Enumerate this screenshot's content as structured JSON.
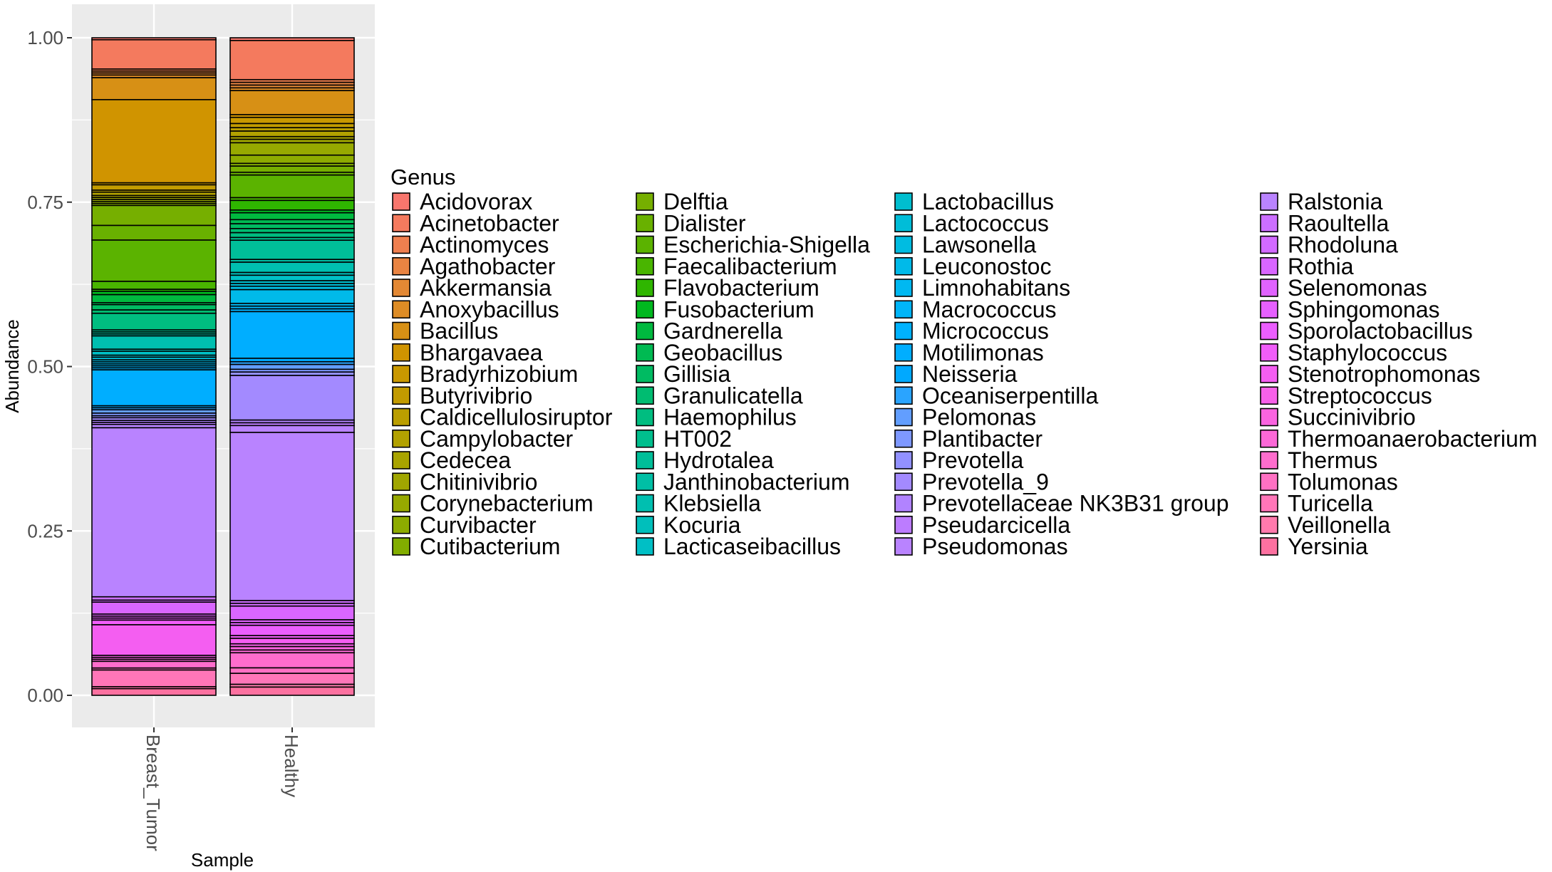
{
  "chart_data": {
    "type": "bar",
    "stacked": true,
    "title": "",
    "xlabel": "Sample",
    "ylabel": "Abundance",
    "ylim": [
      0,
      1.05
    ],
    "yticks": [
      "0.00",
      "0.25",
      "0.50",
      "0.75",
      "1.00"
    ],
    "grid": true,
    "legend_position": "right",
    "legend_title": "Genus",
    "categories": [
      "Breast_Tumor",
      "Healthy"
    ],
    "series": [
      {
        "name": "Acidovorax",
        "color": "#F8766D",
        "values": [
          0.003,
          0.004
        ]
      },
      {
        "name": "Acinetobacter",
        "color": "#F47A5E",
        "values": [
          0.044,
          0.057
        ]
      },
      {
        "name": "Actinomyces",
        "color": "#EF7F4F",
        "values": [
          0.003,
          0.004
        ]
      },
      {
        "name": "Agathobacter",
        "color": "#E98442",
        "values": [
          0.003,
          0.004
        ]
      },
      {
        "name": "Akkermansia",
        "color": "#E38834",
        "values": [
          0.003,
          0.004
        ]
      },
      {
        "name": "Anoxybacillus",
        "color": "#DD8C25",
        "values": [
          0.004,
          0.004
        ]
      },
      {
        "name": "Bacillus",
        "color": "#D79015",
        "values": [
          0.033,
          0.035
        ]
      },
      {
        "name": "Bhargavaea",
        "color": "#D09400",
        "values": [
          0.125,
          0.004
        ]
      },
      {
        "name": "Bradyrhizobium",
        "color": "#C99800",
        "values": [
          0.003,
          0.009
        ]
      },
      {
        "name": "Butyrivibrio",
        "color": "#C29B00",
        "values": [
          0.008,
          0.006
        ]
      },
      {
        "name": "Caldicellulosiruptor",
        "color": "#BA9E00",
        "values": [
          0.003,
          0.005
        ]
      },
      {
        "name": "Campylobacter",
        "color": "#B2A100",
        "values": [
          0.005,
          0.008
        ]
      },
      {
        "name": "Cedecea",
        "color": "#A9A400",
        "values": [
          0.003,
          0.004
        ]
      },
      {
        "name": "Chitinivibrio",
        "color": "#A0A600",
        "values": [
          0.003,
          0.005
        ]
      },
      {
        "name": "Corynebacterium",
        "color": "#97A900",
        "values": [
          0.003,
          0.018
        ]
      },
      {
        "name": "Curvibacter",
        "color": "#8DAB00",
        "values": [
          0.003,
          0.012
        ]
      },
      {
        "name": "Cutibacterium",
        "color": "#82AD00",
        "values": [
          0.003,
          0.004
        ]
      },
      {
        "name": "Delftia",
        "color": "#76AF00",
        "values": [
          0.03,
          0.009
        ]
      },
      {
        "name": "Dialister",
        "color": "#69B100",
        "values": [
          0.022,
          0.004
        ]
      },
      {
        "name": "Escherichia-Shigella",
        "color": "#5BB300",
        "values": [
          0.062,
          0.033
        ]
      },
      {
        "name": "Faecalibacterium",
        "color": "#49B500",
        "values": [
          0.012,
          0.004
        ]
      },
      {
        "name": "Flavobacterium",
        "color": "#2FB600",
        "values": [
          0.003,
          0.014
        ]
      },
      {
        "name": "Fusobacterium",
        "color": "#00B81F",
        "values": [
          0.005,
          0.004
        ]
      },
      {
        "name": "Gardnerella",
        "color": "#00B93F",
        "values": [
          0.012,
          0.01
        ]
      },
      {
        "name": "Geobacillus",
        "color": "#00BA52",
        "values": [
          0.003,
          0.006
        ]
      },
      {
        "name": "Gillisia",
        "color": "#00BB62",
        "values": [
          0.008,
          0.007
        ]
      },
      {
        "name": "Granulicatella",
        "color": "#00BC71",
        "values": [
          0.005,
          0.006
        ]
      },
      {
        "name": "Haemophilus",
        "color": "#00BD80",
        "values": [
          0.025,
          0.007
        ]
      },
      {
        "name": "HT002",
        "color": "#00BE8D",
        "values": [
          0.003,
          0.004
        ]
      },
      {
        "name": "Hydrotalea",
        "color": "#00BE99",
        "values": [
          0.003,
          0.028
        ]
      },
      {
        "name": "Janthinobacterium",
        "color": "#00BFA5",
        "values": [
          0.003,
          0.004
        ]
      },
      {
        "name": "Klebsiella",
        "color": "#00BFB0",
        "values": [
          0.02,
          0.015
        ]
      },
      {
        "name": "Kocuria",
        "color": "#00BFBB",
        "values": [
          0.003,
          0.004
        ]
      },
      {
        "name": "Lacticaseibacillus",
        "color": "#00BFC5",
        "values": [
          0.006,
          0.008
        ]
      },
      {
        "name": "Lactobacillus",
        "color": "#00BECF",
        "values": [
          0.003,
          0.004
        ]
      },
      {
        "name": "Lactococcus",
        "color": "#00BDD8",
        "values": [
          0.004,
          0.004
        ]
      },
      {
        "name": "Lawsonella",
        "color": "#00BCE1",
        "values": [
          0.003,
          0.005
        ]
      },
      {
        "name": "Leuconostoc",
        "color": "#00BAE9",
        "values": [
          0.003,
          0.02
        ]
      },
      {
        "name": "Limnohabitans",
        "color": "#00B8F1",
        "values": [
          0.003,
          0.004
        ]
      },
      {
        "name": "Macrococcus",
        "color": "#00B5F8",
        "values": [
          0.003,
          0.004
        ]
      },
      {
        "name": "Micrococcus",
        "color": "#00B2FE",
        "values": [
          0.003,
          0.004
        ]
      },
      {
        "name": "Motilimonas",
        "color": "#00AEFF",
        "values": [
          0.054,
          0.068
        ]
      },
      {
        "name": "Neisseria",
        "color": "#00A9FF",
        "values": [
          0.003,
          0.005
        ]
      },
      {
        "name": "Oceaniserpentilla",
        "color": "#2AA4FF",
        "values": [
          0.003,
          0.004
        ]
      },
      {
        "name": "Pelomonas",
        "color": "#629EFF",
        "values": [
          0.005,
          0.007
        ]
      },
      {
        "name": "Plantibacter",
        "color": "#7E98FF",
        "values": [
          0.004,
          0.004
        ]
      },
      {
        "name": "Prevotella",
        "color": "#9291FF",
        "values": [
          0.003,
          0.005
        ]
      },
      {
        "name": "Prevotella_9",
        "color": "#A38AFF",
        "values": [
          0.004,
          0.065
        ]
      },
      {
        "name": "Prevotellaceae NK3B31 group",
        "color": "#B183FF",
        "values": [
          0.003,
          0.004
        ]
      },
      {
        "name": "Pseudarcicella",
        "color": "#BC7CFF",
        "values": [
          0.003,
          0.004
        ]
      },
      {
        "name": "Pseudomonas",
        "color": "#B983FF",
        "values": [
          0.005,
          0.01
        ]
      },
      {
        "name": "Ralstonia",
        "color": "#B983FF",
        "values": [
          0.254,
          0.245
        ]
      },
      {
        "name": "Raoultella",
        "color": "#CB6FFF",
        "values": [
          0.005,
          0.004
        ]
      },
      {
        "name": "Rhodoluna",
        "color": "#D26AFF",
        "values": [
          0.003,
          0.004
        ]
      },
      {
        "name": "Rothia",
        "color": "#D966FF",
        "values": [
          0.018,
          0.02
        ]
      },
      {
        "name": "Selenomonas",
        "color": "#E063FF",
        "values": [
          0.003,
          0.004
        ]
      },
      {
        "name": "Sphingomonas",
        "color": "#E660FF",
        "values": [
          0.003,
          0.004
        ]
      },
      {
        "name": "Sporolactobacillus",
        "color": "#EB5EFF",
        "values": [
          0.003,
          0.015
        ]
      },
      {
        "name": "Staphylococcus",
        "color": "#F05DF9",
        "values": [
          0.007,
          0.004
        ]
      },
      {
        "name": "Stenotrophomonas",
        "color": "#F45EF1",
        "values": [
          0.046,
          0.008
        ]
      },
      {
        "name": "Streptococcus",
        "color": "#F761E9",
        "values": [
          0.003,
          0.004
        ]
      },
      {
        "name": "Succinivibrio",
        "color": "#FA64E0",
        "values": [
          0.003,
          0.005
        ]
      },
      {
        "name": "Thermoanaerobacterium",
        "color": "#FC68D7",
        "values": [
          0.003,
          0.004
        ]
      },
      {
        "name": "Thermus",
        "color": "#FE6DCD",
        "values": [
          0.01,
          0.022
        ]
      },
      {
        "name": "Tolumonas",
        "color": "#FF71C3",
        "values": [
          0.003,
          0.008
        ]
      },
      {
        "name": "Turicella",
        "color": "#FF76B8",
        "values": [
          0.025,
          0.016
        ]
      },
      {
        "name": "Veillonella",
        "color": "#FF7AAD",
        "values": [
          0.003,
          0.004
        ]
      },
      {
        "name": "Yersinia",
        "color": "#FC71A0",
        "values": [
          0.01,
          0.012
        ]
      }
    ]
  }
}
